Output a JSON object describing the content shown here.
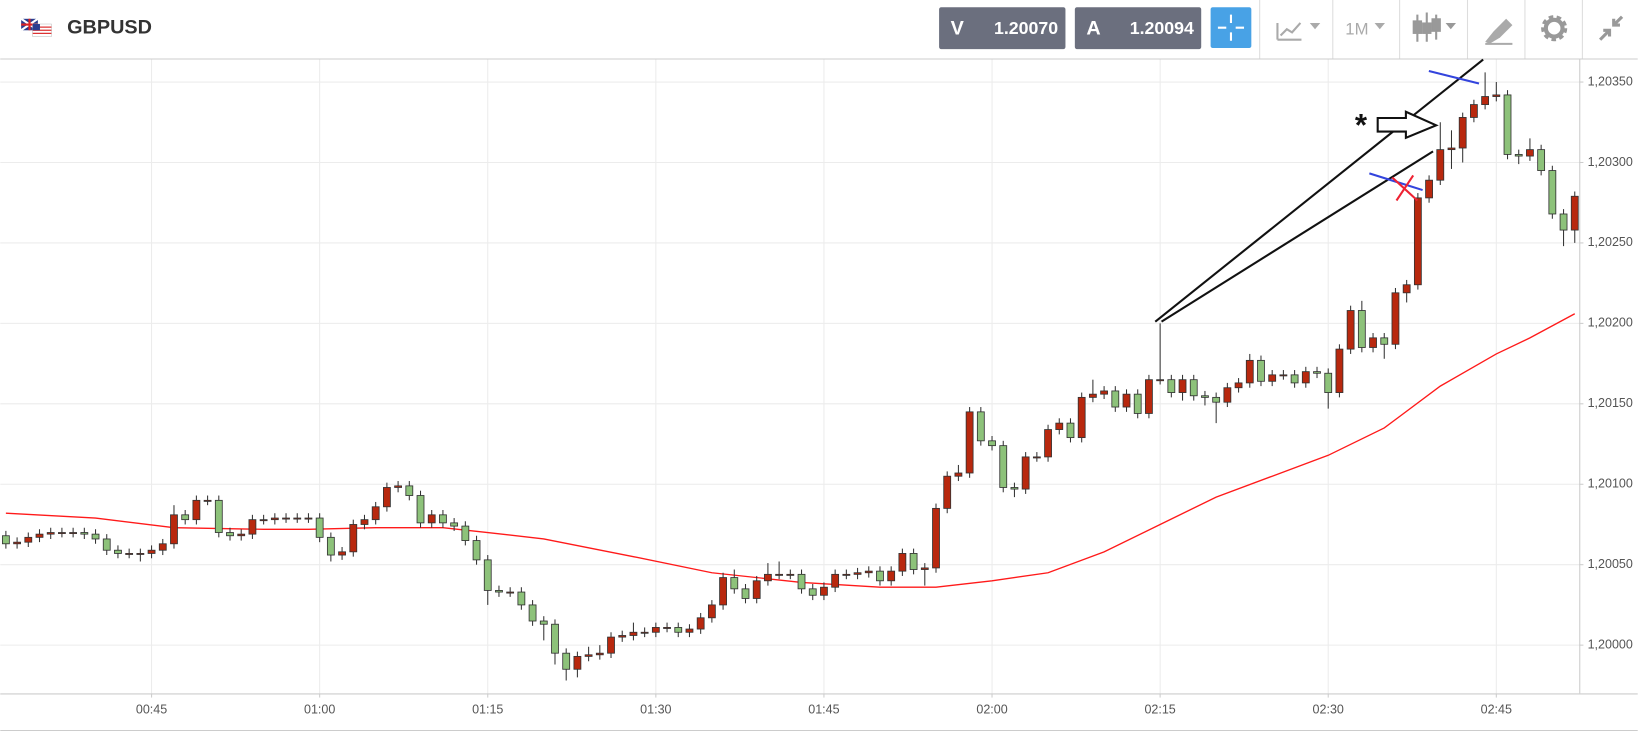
{
  "toolbar": {
    "symbol": "GBPUSD",
    "sell_label": "V",
    "sell_price": "1.20070",
    "buy_label": "A",
    "buy_price": "1.20094",
    "timeframe": "1M"
  },
  "chart_data": {
    "type": "candlestick",
    "annotation": "*",
    "x": [
      32,
      33,
      34,
      35,
      36,
      37,
      38,
      39,
      40,
      41,
      42,
      43,
      44,
      45,
      46,
      47,
      48,
      49,
      50,
      51,
      52,
      53,
      54,
      55,
      56,
      57,
      58,
      59,
      60,
      61,
      62,
      63,
      64,
      65,
      66,
      67,
      68,
      69,
      70,
      71,
      72,
      73,
      74,
      75,
      76,
      77,
      78,
      79,
      80,
      81,
      82,
      83,
      84,
      85,
      86,
      87,
      88,
      89,
      90,
      91,
      92,
      93,
      94,
      95,
      96,
      97,
      98,
      99,
      100,
      101,
      102,
      103,
      104,
      105,
      106,
      107,
      108,
      109,
      110,
      111,
      112,
      113,
      114,
      115,
      116,
      117,
      118,
      119,
      120,
      121,
      122,
      123,
      124,
      125,
      126,
      127,
      128,
      129,
      130,
      131,
      132,
      133,
      134,
      135,
      136,
      137,
      138,
      139,
      140,
      141,
      142,
      143,
      144,
      145,
      146,
      147,
      148,
      149,
      150,
      151,
      152,
      153,
      154,
      155,
      156,
      157,
      158,
      159,
      160,
      161,
      162,
      163,
      164,
      165,
      166,
      167,
      168,
      169,
      170,
      171,
      172
    ],
    "open": [
      1.20068,
      1.20063,
      1.20064,
      1.20067,
      1.20069,
      1.2007,
      1.2007,
      1.2007,
      1.20069,
      1.20066,
      1.20059,
      1.20057,
      1.20057,
      1.20057,
      1.20059,
      1.20063,
      1.20081,
      1.20078,
      1.2009,
      1.2009,
      1.2007,
      1.20068,
      1.20069,
      1.20078,
      1.20078,
      1.20079,
      1.20079,
      1.20079,
      1.20079,
      1.20067,
      1.20056,
      1.20058,
      1.20075,
      1.20078,
      1.20086,
      1.20098,
      1.20099,
      1.20093,
      1.20076,
      1.20081,
      1.20076,
      1.20074,
      1.20065,
      1.20053,
      1.20034,
      1.20033,
      1.20033,
      1.20025,
      1.20015,
      1.20013,
      1.19995,
      1.19985,
      1.19993,
      1.19994,
      1.19995,
      1.20005,
      1.20006,
      1.20008,
      1.20008,
      1.20011,
      1.20011,
      1.20008,
      1.2001,
      1.20017,
      1.20025,
      1.20042,
      1.20035,
      1.20029,
      1.2004,
      1.20044,
      1.20044,
      1.20044,
      1.20035,
      1.20031,
      1.20036,
      1.20044,
      1.20044,
      1.20045,
      1.20046,
      1.2004,
      1.20046,
      1.20057,
      1.20047,
      1.20048,
      1.20085,
      1.20105,
      1.20107,
      1.20145,
      1.20127,
      1.20124,
      1.20098,
      1.20097,
      1.20117,
      1.20117,
      1.20134,
      1.20138,
      1.20129,
      1.20154,
      1.20156,
      1.20158,
      1.20148,
      1.20156,
      1.20144,
      1.20165,
      1.20165,
      1.20157,
      1.20165,
      1.20155,
      1.20154,
      1.20151,
      1.2016,
      1.20163,
      1.20177,
      1.20164,
      1.20168,
      1.20168,
      1.20163,
      1.2017,
      1.20169,
      1.20157,
      1.20184,
      1.20208,
      1.20185,
      1.20191,
      1.20187,
      1.20219,
      1.20224,
      1.20278,
      1.20289,
      1.20308,
      1.20309,
      1.20328,
      1.20336,
      1.20341,
      1.20342,
      1.20305,
      1.20304,
      1.20308,
      1.20295,
      1.20268,
      1.20258
    ],
    "high": [
      1.20071,
      1.20067,
      1.2007,
      1.20072,
      1.20073,
      1.20073,
      1.20073,
      1.20073,
      1.20072,
      1.20069,
      1.20062,
      1.2006,
      1.2006,
      1.20062,
      1.20066,
      1.20087,
      1.20084,
      1.20093,
      1.20093,
      1.20093,
      1.20073,
      1.20072,
      1.20081,
      1.20081,
      1.20082,
      1.20082,
      1.20082,
      1.20082,
      1.20082,
      1.2007,
      1.20061,
      1.20078,
      1.20081,
      1.20089,
      1.20101,
      1.20102,
      1.20102,
      1.20096,
      1.20084,
      1.20084,
      1.20079,
      1.20077,
      1.20068,
      1.20056,
      1.20037,
      1.20036,
      1.20036,
      1.20028,
      1.20018,
      1.20016,
      1.19998,
      1.19996,
      1.19999,
      1.2,
      1.20008,
      1.20009,
      1.20014,
      1.20011,
      1.20014,
      1.20014,
      1.20014,
      1.20013,
      1.2002,
      1.20028,
      1.20045,
      1.20047,
      1.20038,
      1.20043,
      1.20051,
      1.20052,
      1.20047,
      1.20047,
      1.20038,
      1.20039,
      1.20047,
      1.20047,
      1.20048,
      1.20049,
      1.20049,
      1.20049,
      1.2006,
      1.2006,
      1.20051,
      1.20088,
      1.20108,
      1.20112,
      1.20148,
      1.20148,
      1.2013,
      1.20127,
      1.20101,
      1.2012,
      1.2012,
      1.20137,
      1.20141,
      1.20141,
      1.20157,
      1.20165,
      1.20161,
      1.20161,
      1.20159,
      1.20159,
      1.20168,
      1.202,
      1.20168,
      1.20168,
      1.20168,
      1.20158,
      1.20157,
      1.20163,
      1.20166,
      1.20181,
      1.2018,
      1.20171,
      1.20171,
      1.20171,
      1.20173,
      1.20173,
      1.20172,
      1.20187,
      1.20211,
      1.20214,
      1.20194,
      1.20194,
      1.20222,
      1.20227,
      1.20281,
      1.20292,
      1.20325,
      1.2032,
      1.20331,
      1.20339,
      1.20356,
      1.2035,
      1.20345,
      1.20308,
      1.20315,
      1.20311,
      1.20298,
      1.20271,
      1.20282
    ],
    "low": [
      1.2006,
      1.2006,
      1.20061,
      1.20064,
      1.20066,
      1.20067,
      1.20067,
      1.20066,
      1.20063,
      1.20056,
      1.20054,
      1.20054,
      1.20052,
      1.20054,
      1.20056,
      1.2006,
      1.20075,
      1.20075,
      1.20087,
      1.20067,
      1.20065,
      1.20065,
      1.20066,
      1.20075,
      1.20075,
      1.20076,
      1.20076,
      1.20076,
      1.20064,
      1.20052,
      1.20053,
      1.20055,
      1.20072,
      1.20075,
      1.20083,
      1.20095,
      1.2009,
      1.20073,
      1.20073,
      1.20073,
      1.20071,
      1.20062,
      1.2005,
      1.20025,
      1.2003,
      1.2003,
      1.20022,
      1.20012,
      1.20003,
      1.19988,
      1.19978,
      1.1998,
      1.1999,
      1.19991,
      1.19992,
      1.20002,
      1.20003,
      1.20005,
      1.20005,
      1.20008,
      1.20005,
      1.20005,
      1.20007,
      1.20014,
      1.20022,
      1.20032,
      1.20026,
      1.20026,
      1.20037,
      1.20041,
      1.20041,
      1.20032,
      1.20028,
      1.20028,
      1.20033,
      1.20041,
      1.20041,
      1.20042,
      1.20037,
      1.20037,
      1.20043,
      1.20044,
      1.20037,
      1.20045,
      1.20082,
      1.20102,
      1.20104,
      1.20124,
      1.20121,
      1.20095,
      1.20092,
      1.20094,
      1.20114,
      1.20114,
      1.20131,
      1.20126,
      1.20126,
      1.20151,
      1.20153,
      1.20145,
      1.20145,
      1.20141,
      1.20141,
      1.20162,
      1.20154,
      1.20152,
      1.20152,
      1.20149,
      1.20138,
      1.20148,
      1.20157,
      1.2016,
      1.20161,
      1.20161,
      1.20165,
      1.2016,
      1.2016,
      1.20166,
      1.20147,
      1.20154,
      1.20181,
      1.20182,
      1.20182,
      1.20178,
      1.20184,
      1.20213,
      1.20221,
      1.20275,
      1.20286,
      1.20296,
      1.203,
      1.20325,
      1.20333,
      1.20338,
      1.20302,
      1.20299,
      1.20301,
      1.20292,
      1.20265,
      1.20248,
      1.2025
    ],
    "close": [
      1.20063,
      1.20064,
      1.20067,
      1.20069,
      1.2007,
      1.2007,
      1.2007,
      1.20069,
      1.20066,
      1.20059,
      1.20057,
      1.20057,
      1.20057,
      1.20059,
      1.20063,
      1.20081,
      1.20078,
      1.2009,
      1.2009,
      1.2007,
      1.20068,
      1.20069,
      1.20078,
      1.20078,
      1.20079,
      1.20079,
      1.20079,
      1.20079,
      1.20067,
      1.20056,
      1.20058,
      1.20075,
      1.20078,
      1.20086,
      1.20098,
      1.20099,
      1.20093,
      1.20076,
      1.20081,
      1.20076,
      1.20074,
      1.20065,
      1.20053,
      1.20034,
      1.20033,
      1.20033,
      1.20025,
      1.20015,
      1.20013,
      1.19995,
      1.19985,
      1.19993,
      1.19994,
      1.19995,
      1.20005,
      1.20006,
      1.20008,
      1.20008,
      1.20011,
      1.20011,
      1.20008,
      1.2001,
      1.20017,
      1.20025,
      1.20042,
      1.20035,
      1.20029,
      1.2004,
      1.20044,
      1.20044,
      1.20044,
      1.20035,
      1.20031,
      1.20036,
      1.20044,
      1.20044,
      1.20045,
      1.20046,
      1.2004,
      1.20046,
      1.20057,
      1.20047,
      1.20048,
      1.20085,
      1.20105,
      1.20107,
      1.20145,
      1.20127,
      1.20124,
      1.20098,
      1.20097,
      1.20117,
      1.20117,
      1.20134,
      1.20138,
      1.20129,
      1.20154,
      1.20156,
      1.20158,
      1.20148,
      1.20156,
      1.20144,
      1.20165,
      1.20165,
      1.20157,
      1.20165,
      1.20155,
      1.20154,
      1.20151,
      1.2016,
      1.20163,
      1.20177,
      1.20164,
      1.20168,
      1.20168,
      1.20163,
      1.2017,
      1.20169,
      1.20157,
      1.20184,
      1.20208,
      1.20185,
      1.20191,
      1.20187,
      1.20219,
      1.20224,
      1.20278,
      1.20289,
      1.20308,
      1.20309,
      1.20328,
      1.20336,
      1.20341,
      1.20342,
      1.20305,
      1.20304,
      1.20308,
      1.20295,
      1.20268,
      1.20258,
      1.20279
    ],
    "up_color": "#b8280e",
    "down_color": "#8dc27a",
    "overlay": {
      "x": [
        32,
        40,
        47,
        55,
        59,
        65,
        71,
        75,
        80,
        88,
        95,
        103,
        110,
        115,
        120,
        125,
        130,
        135,
        140,
        145,
        150,
        155,
        160,
        165,
        168,
        172
      ],
      "values": [
        1.20082,
        1.20079,
        1.20073,
        1.20072,
        1.20072,
        1.20073,
        1.20073,
        1.2007,
        1.20066,
        1.20055,
        1.20045,
        1.20039,
        1.20036,
        1.20036,
        1.2004,
        1.20045,
        1.20058,
        1.20075,
        1.20092,
        1.20105,
        1.20118,
        1.20135,
        1.20161,
        1.20181,
        1.20191,
        1.20206
      ],
      "color": "#ff1a1a"
    },
    "xlim": [
      31.5,
      172.4
    ],
    "xticks": [
      {
        "value": 45,
        "label": "00:45"
      },
      {
        "value": 60,
        "label": "01:00"
      },
      {
        "value": 75,
        "label": "01:15"
      },
      {
        "value": 90,
        "label": "01:30"
      },
      {
        "value": 105,
        "label": "01:45"
      },
      {
        "value": 120,
        "label": "02:00"
      },
      {
        "value": 135,
        "label": "02:15"
      },
      {
        "value": 150,
        "label": "02:30"
      },
      {
        "value": 165,
        "label": "02:45"
      }
    ],
    "ylim": [
      1.1997,
      1.20364
    ],
    "yticks": [
      {
        "value": 1.2,
        "label": "1,20000"
      },
      {
        "value": 1.2005,
        "label": "1,20050"
      },
      {
        "value": 1.201,
        "label": "1,20100"
      },
      {
        "value": 1.2015,
        "label": "1,20150"
      },
      {
        "value": 1.202,
        "label": "1,20200"
      },
      {
        "value": 1.2025,
        "label": "1,20250"
      },
      {
        "value": 1.203,
        "label": "1,20300"
      },
      {
        "value": 1.2035,
        "label": "1,20350"
      }
    ],
    "grid": true
  }
}
